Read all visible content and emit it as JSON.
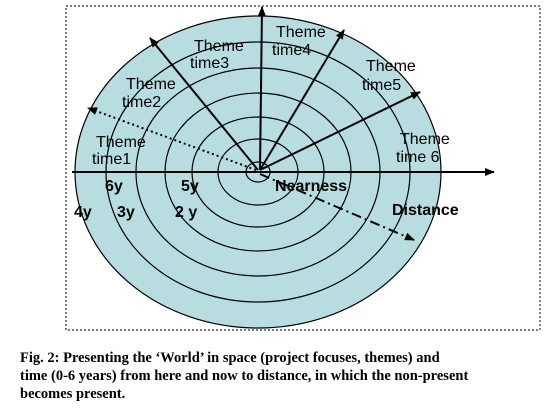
{
  "diagram": {
    "themes": [
      {
        "line1": "Theme",
        "line2": "time1"
      },
      {
        "line1": "Theme",
        "line2": "time2"
      },
      {
        "line1": "Theme",
        "line2": "time3"
      },
      {
        "line1": "Theme",
        "line2": "time4"
      },
      {
        "line1": "Theme",
        "line2": "time5"
      },
      {
        "line1": "Theme",
        "line2": "time 6"
      }
    ],
    "years": [
      "6y",
      "5y",
      "4y",
      "3y",
      "2 y"
    ],
    "nearness": "Nearness",
    "distance": "Distance"
  },
  "caption": {
    "lines": [
      "Fig. 2: Presenting the ‘World’ in space (project focuses, themes) and",
      "time (0-6 years) from here and now to distance, in which the non-present",
      "becomes present."
    ]
  }
}
